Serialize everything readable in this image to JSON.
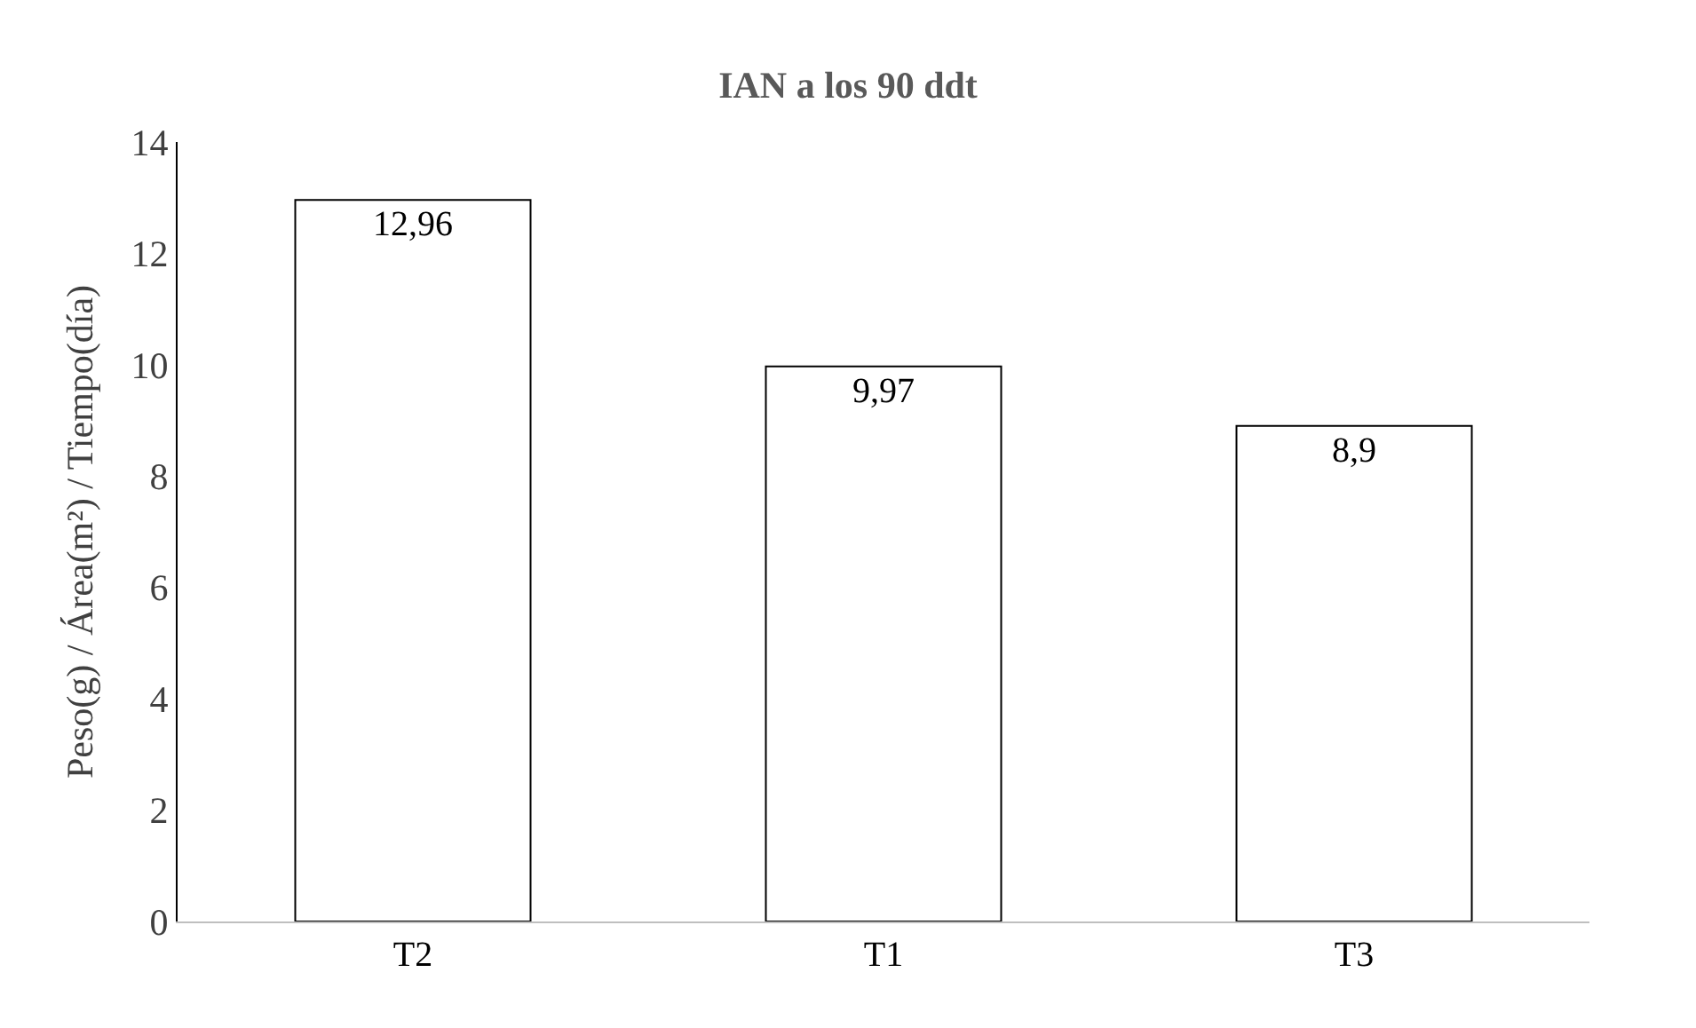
{
  "chart_data": {
    "type": "bar",
    "title": "IAN a los 90 ddt",
    "ylabel": "Peso(g) / Área(m²) / Tiempo(día)",
    "categories": [
      "T2",
      "T1",
      "T3"
    ],
    "values": [
      12.96,
      9.97,
      8.9
    ],
    "color": "#ffffff",
    "value_labels": [
      "12,96",
      "9,97",
      "8,9"
    ],
    "ylim": [
      0,
      14
    ],
    "yticks": [
      0,
      2,
      4,
      6,
      8,
      10,
      12,
      14
    ]
  }
}
